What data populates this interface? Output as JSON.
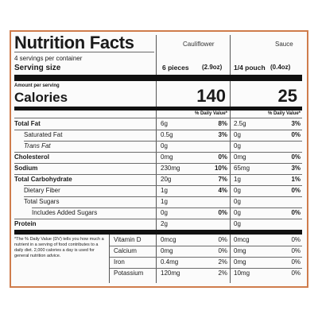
{
  "title": "Nutrition Facts",
  "columns": {
    "cauliflower": "Cauliflower",
    "sauce": "Sauce"
  },
  "servings": "4 servings per container",
  "serving_size_label": "Serving size",
  "serving_size": {
    "cauliflower": {
      "amount": "6 pieces",
      "weight": "(2.9oz)"
    },
    "sauce": {
      "amount": "1/4 pouch",
      "weight": "(0.4oz)"
    }
  },
  "amount_per_serving": "Amount per serving",
  "calories_label": "Calories",
  "calories": {
    "cauliflower": "140",
    "sauce": "25"
  },
  "dv_header": "% Daily Value*",
  "nutrients": [
    {
      "label": "Total Fat",
      "c_amt": "6g",
      "c_pct": "8%",
      "s_amt": "2.5g",
      "s_pct": "3%"
    },
    {
      "label": "Saturated Fat",
      "c_amt": "0.5g",
      "c_pct": "3%",
      "s_amt": "0g",
      "s_pct": "0%"
    },
    {
      "label": "Trans Fat",
      "c_amt": "0g",
      "c_pct": "",
      "s_amt": "0g",
      "s_pct": ""
    },
    {
      "label": "Cholesterol",
      "c_amt": "0mg",
      "c_pct": "0%",
      "s_amt": "0mg",
      "s_pct": "0%"
    },
    {
      "label": "Sodium",
      "c_amt": "230mg",
      "c_pct": "10%",
      "s_amt": "65mg",
      "s_pct": "3%"
    },
    {
      "label": "Total Carbohydrate",
      "c_amt": "20g",
      "c_pct": "7%",
      "s_amt": "1g",
      "s_pct": "1%"
    },
    {
      "label": "Dietary Fiber",
      "c_amt": "1g",
      "c_pct": "4%",
      "s_amt": "0g",
      "s_pct": "0%"
    },
    {
      "label": "Total Sugars",
      "c_amt": "1g",
      "c_pct": "",
      "s_amt": "0g",
      "s_pct": ""
    },
    {
      "label": "Includes Added Sugars",
      "c_amt": "0g",
      "c_pct": "0%",
      "s_amt": "0g",
      "s_pct": "0%"
    },
    {
      "label": "Protein",
      "c_amt": "2g",
      "c_pct": "",
      "s_amt": "0g",
      "s_pct": ""
    }
  ],
  "vitamins": [
    {
      "label": "Vitamin D",
      "c_amt": "0mcg",
      "c_pct": "0%",
      "s_amt": "0mcg",
      "s_pct": "0%"
    },
    {
      "label": "Calcium",
      "c_amt": "0mg",
      "c_pct": "0%",
      "s_amt": "0mg",
      "s_pct": "0%"
    },
    {
      "label": "Iron",
      "c_amt": "0.4mg",
      "c_pct": "2%",
      "s_amt": "0mg",
      "s_pct": "0%"
    },
    {
      "label": "Potassium",
      "c_amt": "120mg",
      "c_pct": "2%",
      "s_amt": "10mg",
      "s_pct": "0%"
    }
  ],
  "footnote": "*The % Daily Value (DV) tells you how much a nutrient in a serving of food contributes to a daily diet. 2,000 calories a day is used for general nutrition advice.",
  "colors": {
    "border": "#cf7c4c",
    "bars": "#111111"
  }
}
